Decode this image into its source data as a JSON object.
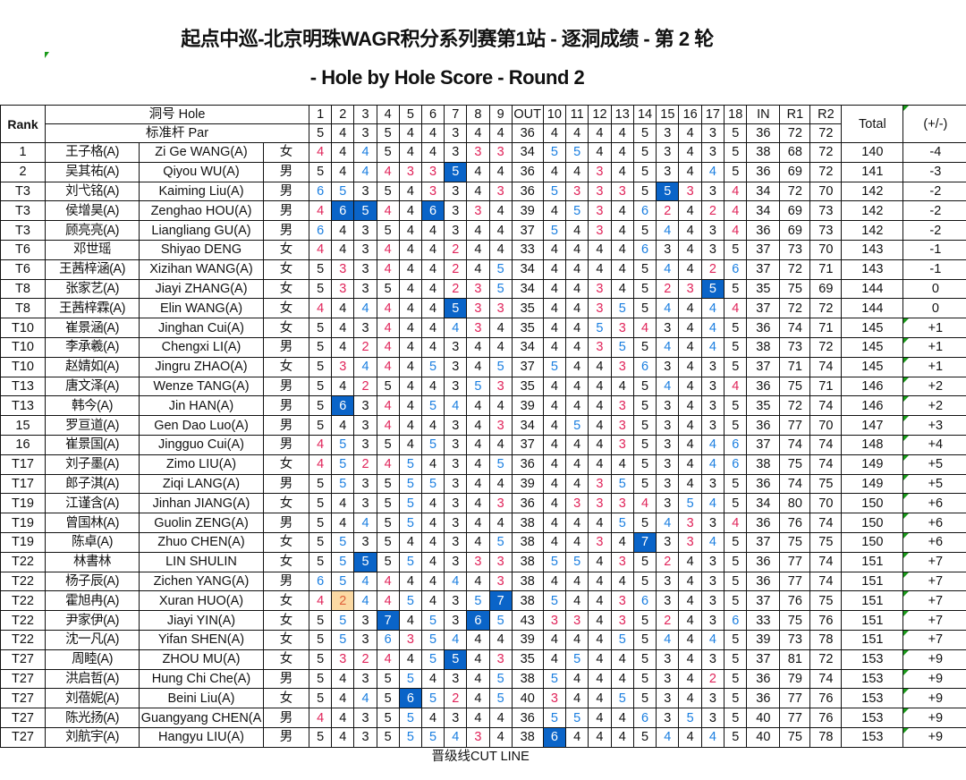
{
  "title": "起点中巡-北京明珠WAGR积分系列赛第1站 - 逐洞成绩 - 第 2 轮",
  "subtitle": "- Hole by Hole Score - Round 2",
  "colors": {
    "birdie": "#e0245a",
    "bogey": "#1a7ee0",
    "double_bogey_fill": "#0a64c8",
    "eagle_fill": "#fbd9a3",
    "flag": "#1a9a1a"
  },
  "header": {
    "rank": "Rank",
    "hole_label": "洞号 Hole",
    "par_label": "标准杆 Par",
    "holes_front": [
      "1",
      "2",
      "3",
      "4",
      "5",
      "6",
      "7",
      "8",
      "9"
    ],
    "out": "OUT",
    "holes_back": [
      "10",
      "11",
      "12",
      "13",
      "14",
      "15",
      "16",
      "17",
      "18"
    ],
    "in": "IN",
    "r1": "R1",
    "r2": "R2",
    "total": "Total",
    "to_par": "(+/-)",
    "par_front": [
      5,
      4,
      3,
      5,
      4,
      4,
      3,
      4,
      4
    ],
    "par_out": 36,
    "par_back": [
      4,
      4,
      4,
      4,
      5,
      3,
      4,
      3,
      5
    ],
    "par_in": 36,
    "par_r1": 72,
    "par_r2": 72
  },
  "rows": [
    {
      "rank": "1",
      "cn": "王子格(A)",
      "en": "Zi Ge WANG(A)",
      "g": "女",
      "f": [
        4,
        4,
        4,
        5,
        4,
        4,
        3,
        3,
        3
      ],
      "out": 34,
      "b": [
        5,
        5,
        4,
        4,
        5,
        3,
        4,
        3,
        5
      ],
      "in": 38,
      "r1": 68,
      "r2": 72,
      "total": 140,
      "par": "-4"
    },
    {
      "rank": "2",
      "cn": "吴其祐(A)",
      "en": "Qiyou  WU(A)",
      "g": "男",
      "f": [
        5,
        4,
        4,
        4,
        3,
        3,
        5,
        4,
        4
      ],
      "out": 36,
      "b": [
        4,
        4,
        3,
        4,
        5,
        3,
        4,
        4,
        5
      ],
      "in": 36,
      "r1": 69,
      "r2": 72,
      "total": 141,
      "par": "-3"
    },
    {
      "rank": "T3",
      "cn": "刘弋铭(A)",
      "en": "Kaiming Liu(A)",
      "g": "男",
      "f": [
        6,
        5,
        3,
        5,
        4,
        3,
        3,
        4,
        3
      ],
      "out": 36,
      "b": [
        5,
        3,
        3,
        3,
        5,
        5,
        3,
        3,
        4
      ],
      "in": 34,
      "r1": 72,
      "r2": 70,
      "total": 142,
      "par": "-2"
    },
    {
      "rank": "T3",
      "cn": "侯增昊(A)",
      "en": "Zenghao HOU(A)",
      "g": "男",
      "f": [
        4,
        6,
        5,
        4,
        4,
        6,
        3,
        3,
        4
      ],
      "out": 39,
      "b": [
        4,
        5,
        3,
        4,
        6,
        2,
        4,
        2,
        4
      ],
      "in": 34,
      "r1": 69,
      "r2": 73,
      "total": 142,
      "par": "-2"
    },
    {
      "rank": "T3",
      "cn": "顾亮亮(A)",
      "en": "Liangliang GU(A)",
      "g": "男",
      "f": [
        6,
        4,
        3,
        5,
        4,
        4,
        3,
        4,
        4
      ],
      "out": 37,
      "b": [
        5,
        4,
        3,
        4,
        5,
        4,
        4,
        3,
        4
      ],
      "in": 36,
      "r1": 69,
      "r2": 73,
      "total": 142,
      "par": "-2"
    },
    {
      "rank": "T6",
      "cn": "邓世瑶",
      "en": "Shiyao DENG",
      "g": "女",
      "f": [
        4,
        4,
        3,
        4,
        4,
        4,
        2,
        4,
        4
      ],
      "out": 33,
      "b": [
        4,
        4,
        4,
        4,
        6,
        3,
        4,
        3,
        5
      ],
      "in": 37,
      "r1": 73,
      "r2": 70,
      "total": 143,
      "par": "-1"
    },
    {
      "rank": "T6",
      "cn": "王茜梓涵(A)",
      "en": "Xizihan WANG(A)",
      "g": "女",
      "f": [
        5,
        3,
        3,
        4,
        4,
        4,
        2,
        4,
        5
      ],
      "out": 34,
      "b": [
        4,
        4,
        4,
        4,
        5,
        4,
        4,
        2,
        6
      ],
      "in": 37,
      "r1": 72,
      "r2": 71,
      "total": 143,
      "par": "-1"
    },
    {
      "rank": "T8",
      "cn": "张家艺(A)",
      "en": "Jiayi ZHANG(A)",
      "g": "女",
      "f": [
        5,
        3,
        3,
        5,
        4,
        4,
        2,
        3,
        5
      ],
      "out": 34,
      "b": [
        4,
        4,
        3,
        4,
        5,
        2,
        3,
        5,
        5
      ],
      "in": 35,
      "r1": 75,
      "r2": 69,
      "total": 144,
      "par": "0"
    },
    {
      "rank": "T8",
      "cn": "王茜梓霖(A)",
      "en": "Elin WANG(A)",
      "g": "女",
      "f": [
        4,
        4,
        4,
        4,
        4,
        4,
        5,
        3,
        3
      ],
      "out": 35,
      "b": [
        4,
        4,
        3,
        5,
        5,
        4,
        4,
        4,
        4
      ],
      "in": 37,
      "r1": 72,
      "r2": 72,
      "total": 144,
      "par": "0"
    },
    {
      "rank": "T10",
      "cn": "崔景涵(A)",
      "en": "Jinghan Cui(A)",
      "g": "女",
      "f": [
        5,
        4,
        3,
        4,
        4,
        4,
        4,
        3,
        4
      ],
      "out": 35,
      "b": [
        4,
        4,
        5,
        3,
        4,
        3,
        4,
        4,
        5
      ],
      "in": 36,
      "r1": 74,
      "r2": 71,
      "total": 145,
      "par": "+1"
    },
    {
      "rank": "T10",
      "cn": "李承羲(A)",
      "en": "Chengxi LI(A)",
      "g": "男",
      "f": [
        5,
        4,
        2,
        4,
        4,
        4,
        3,
        4,
        4
      ],
      "out": 34,
      "b": [
        4,
        4,
        3,
        5,
        5,
        4,
        4,
        4,
        5
      ],
      "in": 38,
      "r1": 73,
      "r2": 72,
      "total": 145,
      "par": "+1"
    },
    {
      "rank": "T10",
      "cn": "赵婧如(A)",
      "en": "Jingru ZHAO(A)",
      "g": "女",
      "f": [
        5,
        3,
        4,
        4,
        4,
        5,
        3,
        4,
        5
      ],
      "out": 37,
      "b": [
        5,
        4,
        4,
        3,
        6,
        3,
        4,
        3,
        5
      ],
      "in": 37,
      "r1": 71,
      "r2": 74,
      "total": 145,
      "par": "+1"
    },
    {
      "rank": "T13",
      "cn": "唐文泽(A)",
      "en": "Wenze TANG(A)",
      "g": "男",
      "f": [
        5,
        4,
        2,
        5,
        4,
        4,
        3,
        5,
        3
      ],
      "out": 35,
      "b": [
        4,
        4,
        4,
        4,
        5,
        4,
        4,
        3,
        4
      ],
      "in": 36,
      "r1": 75,
      "r2": 71,
      "total": 146,
      "par": "+2"
    },
    {
      "rank": "T13",
      "cn": "韩今(A)",
      "en": "Jin HAN(A)",
      "g": "男",
      "f": [
        5,
        6,
        3,
        4,
        4,
        5,
        4,
        4,
        4
      ],
      "out": 39,
      "b": [
        4,
        4,
        4,
        3,
        5,
        3,
        4,
        3,
        5
      ],
      "in": 35,
      "r1": 72,
      "r2": 74,
      "total": 146,
      "par": "+2"
    },
    {
      "rank": "15",
      "cn": "罗亘道(A)",
      "en": "Gen Dao Luo(A)",
      "g": "男",
      "f": [
        5,
        4,
        3,
        4,
        4,
        4,
        3,
        4,
        3
      ],
      "out": 34,
      "b": [
        4,
        5,
        4,
        3,
        5,
        3,
        4,
        3,
        5
      ],
      "in": 36,
      "r1": 77,
      "r2": 70,
      "total": 147,
      "par": "+3"
    },
    {
      "rank": "16",
      "cn": "崔景国(A)",
      "en": "Jingguo Cui(A)",
      "g": "男",
      "f": [
        4,
        5,
        3,
        5,
        4,
        5,
        3,
        4,
        4
      ],
      "out": 37,
      "b": [
        4,
        4,
        4,
        3,
        5,
        3,
        4,
        4,
        6
      ],
      "in": 37,
      "r1": 74,
      "r2": 74,
      "total": 148,
      "par": "+4"
    },
    {
      "rank": "T17",
      "cn": "刘子墨(A)",
      "en": "Zimo LIU(A)",
      "g": "女",
      "f": [
        4,
        5,
        2,
        4,
        5,
        4,
        3,
        4,
        5
      ],
      "out": 36,
      "b": [
        4,
        4,
        4,
        4,
        5,
        3,
        4,
        4,
        6
      ],
      "in": 38,
      "r1": 75,
      "r2": 74,
      "total": 149,
      "par": "+5"
    },
    {
      "rank": "T17",
      "cn": "郎子淇(A)",
      "en": "Ziqi LANG(A)",
      "g": "男",
      "f": [
        5,
        5,
        3,
        5,
        5,
        5,
        3,
        4,
        4
      ],
      "out": 39,
      "b": [
        4,
        4,
        3,
        5,
        5,
        3,
        4,
        3,
        5
      ],
      "in": 36,
      "r1": 74,
      "r2": 75,
      "total": 149,
      "par": "+5"
    },
    {
      "rank": "T19",
      "cn": "江谨含(A)",
      "en": "Jinhan  JIANG(A)",
      "g": "女",
      "f": [
        5,
        4,
        3,
        5,
        5,
        4,
        3,
        4,
        3
      ],
      "out": 36,
      "b": [
        4,
        3,
        3,
        3,
        4,
        3,
        5,
        4,
        5
      ],
      "in": 34,
      "r1": 80,
      "r2": 70,
      "total": 150,
      "par": "+6"
    },
    {
      "rank": "T19",
      "cn": "曾国林(A)",
      "en": "Guolin ZENG(A)",
      "g": "男",
      "f": [
        5,
        4,
        4,
        5,
        5,
        4,
        3,
        4,
        4
      ],
      "out": 38,
      "b": [
        4,
        4,
        4,
        5,
        5,
        4,
        3,
        3,
        4
      ],
      "in": 36,
      "r1": 76,
      "r2": 74,
      "total": 150,
      "par": "+6"
    },
    {
      "rank": "T19",
      "cn": "陈卓(A)",
      "en": "Zhuo CHEN(A)",
      "g": "女",
      "f": [
        5,
        5,
        3,
        5,
        4,
        4,
        3,
        4,
        5
      ],
      "out": 38,
      "b": [
        4,
        4,
        3,
        4,
        7,
        3,
        3,
        4,
        5
      ],
      "in": 37,
      "r1": 75,
      "r2": 75,
      "total": 150,
      "par": "+6"
    },
    {
      "rank": "T22",
      "cn": "林書林",
      "en": "LIN SHULIN",
      "g": "女",
      "f": [
        5,
        5,
        5,
        5,
        5,
        4,
        3,
        3,
        3
      ],
      "out": 38,
      "b": [
        5,
        5,
        4,
        3,
        5,
        2,
        4,
        3,
        5
      ],
      "in": 36,
      "r1": 77,
      "r2": 74,
      "total": 151,
      "par": "+7"
    },
    {
      "rank": "T22",
      "cn": "杨子辰(A)",
      "en": "Zichen YANG(A)",
      "g": "男",
      "f": [
        6,
        5,
        4,
        4,
        4,
        4,
        4,
        4,
        3
      ],
      "out": 38,
      "b": [
        4,
        4,
        4,
        4,
        5,
        3,
        4,
        3,
        5
      ],
      "in": 36,
      "r1": 77,
      "r2": 74,
      "total": 151,
      "par": "+7"
    },
    {
      "rank": "T22",
      "cn": "霍旭冉(A)",
      "en": "Xuran HUO(A)",
      "g": "女",
      "f": [
        4,
        2,
        4,
        4,
        5,
        4,
        3,
        5,
        7
      ],
      "out": 38,
      "b": [
        5,
        4,
        4,
        3,
        6,
        3,
        4,
        3,
        5
      ],
      "in": 37,
      "r1": 76,
      "r2": 75,
      "total": 151,
      "par": "+7"
    },
    {
      "rank": "T22",
      "cn": "尹家伊(A)",
      "en": "Jiayi YIN(A)",
      "g": "女",
      "f": [
        5,
        5,
        3,
        7,
        4,
        5,
        3,
        6,
        5
      ],
      "out": 43,
      "b": [
        3,
        3,
        4,
        3,
        5,
        2,
        4,
        3,
        6
      ],
      "in": 33,
      "r1": 75,
      "r2": 76,
      "total": 151,
      "par": "+7"
    },
    {
      "rank": "T22",
      "cn": "沈一凡(A)",
      "en": "Yifan  SHEN(A)",
      "g": "女",
      "f": [
        5,
        5,
        3,
        6,
        3,
        5,
        4,
        4,
        4
      ],
      "out": 39,
      "b": [
        4,
        4,
        4,
        5,
        5,
        4,
        4,
        4,
        5
      ],
      "in": 39,
      "r1": 73,
      "r2": 78,
      "total": 151,
      "par": "+7"
    },
    {
      "rank": "T27",
      "cn": "周睦(A)",
      "en": "ZHOU  MU(A)",
      "g": "女",
      "f": [
        5,
        3,
        2,
        4,
        4,
        5,
        5,
        4,
        3
      ],
      "out": 35,
      "b": [
        4,
        5,
        4,
        4,
        5,
        3,
        4,
        3,
        5
      ],
      "in": 37,
      "r1": 81,
      "r2": 72,
      "total": 153,
      "par": "+9"
    },
    {
      "rank": "T27",
      "cn": "洪启哲(A)",
      "en": "Hung  Chi Che(A)",
      "g": "男",
      "f": [
        5,
        4,
        3,
        5,
        5,
        4,
        3,
        4,
        5
      ],
      "out": 38,
      "b": [
        5,
        4,
        4,
        4,
        5,
        3,
        4,
        2,
        5
      ],
      "in": 36,
      "r1": 79,
      "r2": 74,
      "total": 153,
      "par": "+9"
    },
    {
      "rank": "T27",
      "cn": "刘蓓妮(A)",
      "en": "Beini Liu(A)",
      "g": "女",
      "f": [
        5,
        4,
        4,
        5,
        6,
        5,
        2,
        4,
        5
      ],
      "out": 40,
      "b": [
        3,
        4,
        4,
        5,
        5,
        3,
        4,
        3,
        5
      ],
      "in": 36,
      "r1": 77,
      "r2": 76,
      "total": 153,
      "par": "+9"
    },
    {
      "rank": "T27",
      "cn": "陈光扬(A)",
      "en": "Guangyang CHEN(A",
      "g": "男",
      "f": [
        4,
        4,
        3,
        5,
        5,
        4,
        3,
        4,
        4
      ],
      "out": 36,
      "b": [
        5,
        5,
        4,
        4,
        6,
        3,
        5,
        3,
        5
      ],
      "in": 40,
      "r1": 77,
      "r2": 76,
      "total": 153,
      "par": "+9"
    },
    {
      "rank": "T27",
      "cn": "刘航宇(A)",
      "en": "Hangyu LIU(A)",
      "g": "男",
      "f": [
        5,
        4,
        3,
        5,
        5,
        5,
        4,
        3,
        4
      ],
      "out": 38,
      "b": [
        6,
        4,
        4,
        4,
        5,
        4,
        4,
        4,
        5
      ],
      "in": 40,
      "r1": 75,
      "r2": 78,
      "total": 153,
      "par": "+9"
    }
  ],
  "cut_line": "晋级线CUT LINE"
}
